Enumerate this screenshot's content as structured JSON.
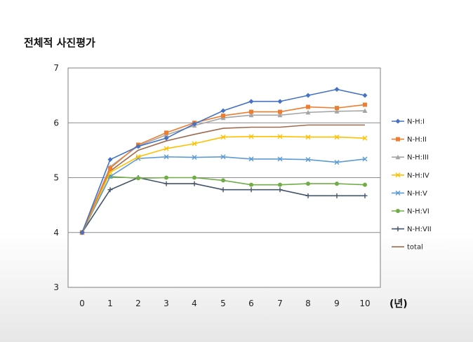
{
  "title": "전체적 사진평가",
  "chart_data": {
    "type": "line",
    "title": "전체적 사진평가",
    "x": [
      0,
      1,
      2,
      3,
      4,
      5,
      6,
      7,
      8,
      9,
      10
    ],
    "xunit": "(년)",
    "ylim": [
      3,
      7
    ],
    "yticks": [
      3,
      4,
      5,
      6,
      7
    ],
    "grid": "horizontal",
    "legend_position": "right",
    "series": [
      {
        "name": "N-H:I",
        "color": "#4472C4",
        "marker": "diamond",
        "values": [
          4.0,
          5.33,
          5.57,
          5.72,
          5.98,
          6.22,
          6.39,
          6.39,
          6.5,
          6.61,
          6.5
        ]
      },
      {
        "name": "N-H:II",
        "color": "#ED7D31",
        "marker": "square",
        "values": [
          4.0,
          5.17,
          5.6,
          5.82,
          6.0,
          6.13,
          6.2,
          6.2,
          6.29,
          6.27,
          6.33
        ]
      },
      {
        "name": "N-H:III",
        "color": "#A5A5A5",
        "marker": "triangle",
        "values": [
          4.0,
          5.2,
          5.58,
          5.78,
          5.95,
          6.09,
          6.14,
          6.14,
          6.19,
          6.21,
          6.22
        ]
      },
      {
        "name": "N-H:IV",
        "color": "#FFC000",
        "marker": "x",
        "values": [
          4.0,
          5.1,
          5.38,
          5.53,
          5.62,
          5.74,
          5.75,
          5.75,
          5.74,
          5.74,
          5.72
        ]
      },
      {
        "name": "N-H:V",
        "color": "#5B9BD5",
        "marker": "x",
        "values": [
          4.0,
          5.02,
          5.35,
          5.38,
          5.37,
          5.38,
          5.34,
          5.34,
          5.33,
          5.28,
          5.34
        ]
      },
      {
        "name": "N-H:VI",
        "color": "#70AD47",
        "marker": "circle",
        "values": [
          4.0,
          5.02,
          4.99,
          5.0,
          5.0,
          4.95,
          4.87,
          4.87,
          4.89,
          4.89,
          4.87
        ]
      },
      {
        "name": "N-H:VII",
        "color": "#44546A",
        "marker": "plus",
        "values": [
          4.0,
          4.78,
          5.0,
          4.89,
          4.89,
          4.78,
          4.78,
          4.78,
          4.67,
          4.67,
          4.67
        ]
      },
      {
        "name": "total",
        "color": "#9E6A4D",
        "marker": "none",
        "values": [
          4.0,
          5.12,
          5.5,
          5.67,
          5.79,
          5.9,
          5.92,
          5.92,
          5.96,
          5.96,
          5.96
        ]
      }
    ]
  }
}
